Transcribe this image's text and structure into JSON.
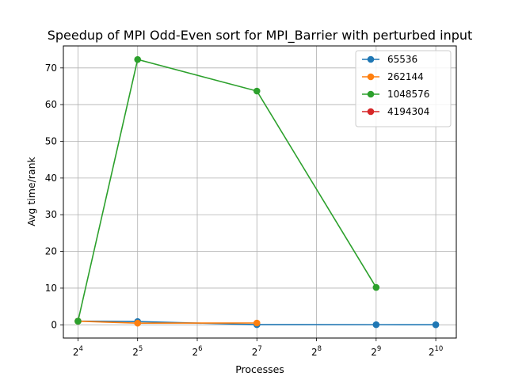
{
  "chart_data": {
    "type": "line",
    "title": "Speedup of MPI Odd-Even sort for MPI_Barrier with perturbed input",
    "xlabel": "Processes",
    "ylabel": "Avg time/rank",
    "x_scale": "log2",
    "xlim": [
      13.5,
      1300
    ],
    "ylim": [
      -3.6,
      76
    ],
    "x_ticks": [
      {
        "value": 16,
        "base": "2",
        "exp": "4"
      },
      {
        "value": 32,
        "base": "2",
        "exp": "5"
      },
      {
        "value": 64,
        "base": "2",
        "exp": "6"
      },
      {
        "value": 128,
        "base": "2",
        "exp": "7"
      },
      {
        "value": 256,
        "base": "2",
        "exp": "8"
      },
      {
        "value": 512,
        "base": "2",
        "exp": "9"
      },
      {
        "value": 1024,
        "base": "2",
        "exp": "10"
      }
    ],
    "y_ticks": [
      0,
      10,
      20,
      30,
      40,
      50,
      60,
      70
    ],
    "y_tick_labels": [
      "0",
      "10",
      "20",
      "30",
      "40",
      "50",
      "60",
      "70"
    ],
    "grid": true,
    "legend_position": "top-right",
    "series": [
      {
        "name": "65536",
        "color": "#1f77b4",
        "points": [
          [
            16,
            1.0
          ],
          [
            32,
            0.9
          ],
          [
            128,
            0.05
          ],
          [
            512,
            0.04
          ],
          [
            1024,
            0.03
          ]
        ]
      },
      {
        "name": "262144",
        "color": "#ff7f0e",
        "points": [
          [
            16,
            1.0
          ],
          [
            32,
            0.45
          ],
          [
            128,
            0.5
          ]
        ]
      },
      {
        "name": "1048576",
        "color": "#2ca02c",
        "points": [
          [
            16,
            1.0
          ],
          [
            32,
            72.3
          ],
          [
            128,
            63.7
          ],
          [
            512,
            10.2
          ]
        ]
      },
      {
        "name": "4194304",
        "color": "#d62728",
        "points": []
      }
    ]
  }
}
